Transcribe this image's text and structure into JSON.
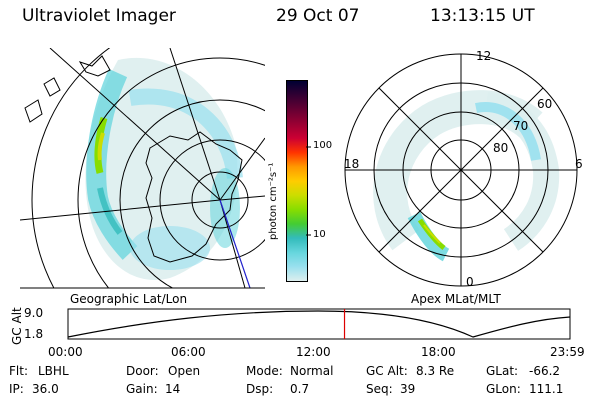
{
  "header": {
    "instrument": "Ultraviolet Imager",
    "date": "29 Oct 07",
    "time": "13:13:15 UT"
  },
  "left_panel": {
    "label": "Geographic Lat/Lon"
  },
  "right_panel": {
    "label": "Apex MLat/MLT",
    "mlt_labels": {
      "top": "12",
      "left": "18",
      "right": "6",
      "bottom": "0"
    },
    "mlat_labels": [
      "60",
      "70",
      "80"
    ]
  },
  "colorbar": {
    "unit_label": "photon cm⁻²s⁻¹",
    "ticks": [
      "100",
      "10"
    ],
    "colors": [
      "#000033",
      "#330033",
      "#660033",
      "#990033",
      "#cc0033",
      "#ff3300",
      "#ff9900",
      "#ffcc00",
      "#ccdd00",
      "#88dd00",
      "#44cc33",
      "#33bbbb",
      "#66d6dd",
      "#99e0ee",
      "#ddeeee"
    ]
  },
  "altitude_strip": {
    "axis_label": "GC Alt",
    "y_ticks": [
      "9.0",
      "1.8"
    ],
    "time_ticks": [
      "00:00",
      "06:00",
      "12:00",
      "18:00",
      "23:59"
    ],
    "current_time_hours": 13.22
  },
  "status": {
    "row1": [
      {
        "key": "Flt:",
        "value": "LBHL"
      },
      {
        "key": "Door:",
        "value": "Open"
      },
      {
        "key": "Mode:",
        "value": "Normal"
      },
      {
        "key": "GC Alt:",
        "value": "8.3 Re"
      },
      {
        "key": "GLat:",
        "value": "-66.2"
      }
    ],
    "row2": [
      {
        "key": "IP:",
        "value": "36.0"
      },
      {
        "key": "Gain:",
        "value": "14"
      },
      {
        "key": "Dsp:",
        "value": "0.7"
      },
      {
        "key": "Seq:",
        "value": "39"
      },
      {
        "key": "GLon:",
        "value": "111.1"
      }
    ]
  },
  "colors": {
    "aurora_cyan": "#66d6dd",
    "aurora_green": "#88dd00",
    "marker_red": "#dd0000"
  }
}
